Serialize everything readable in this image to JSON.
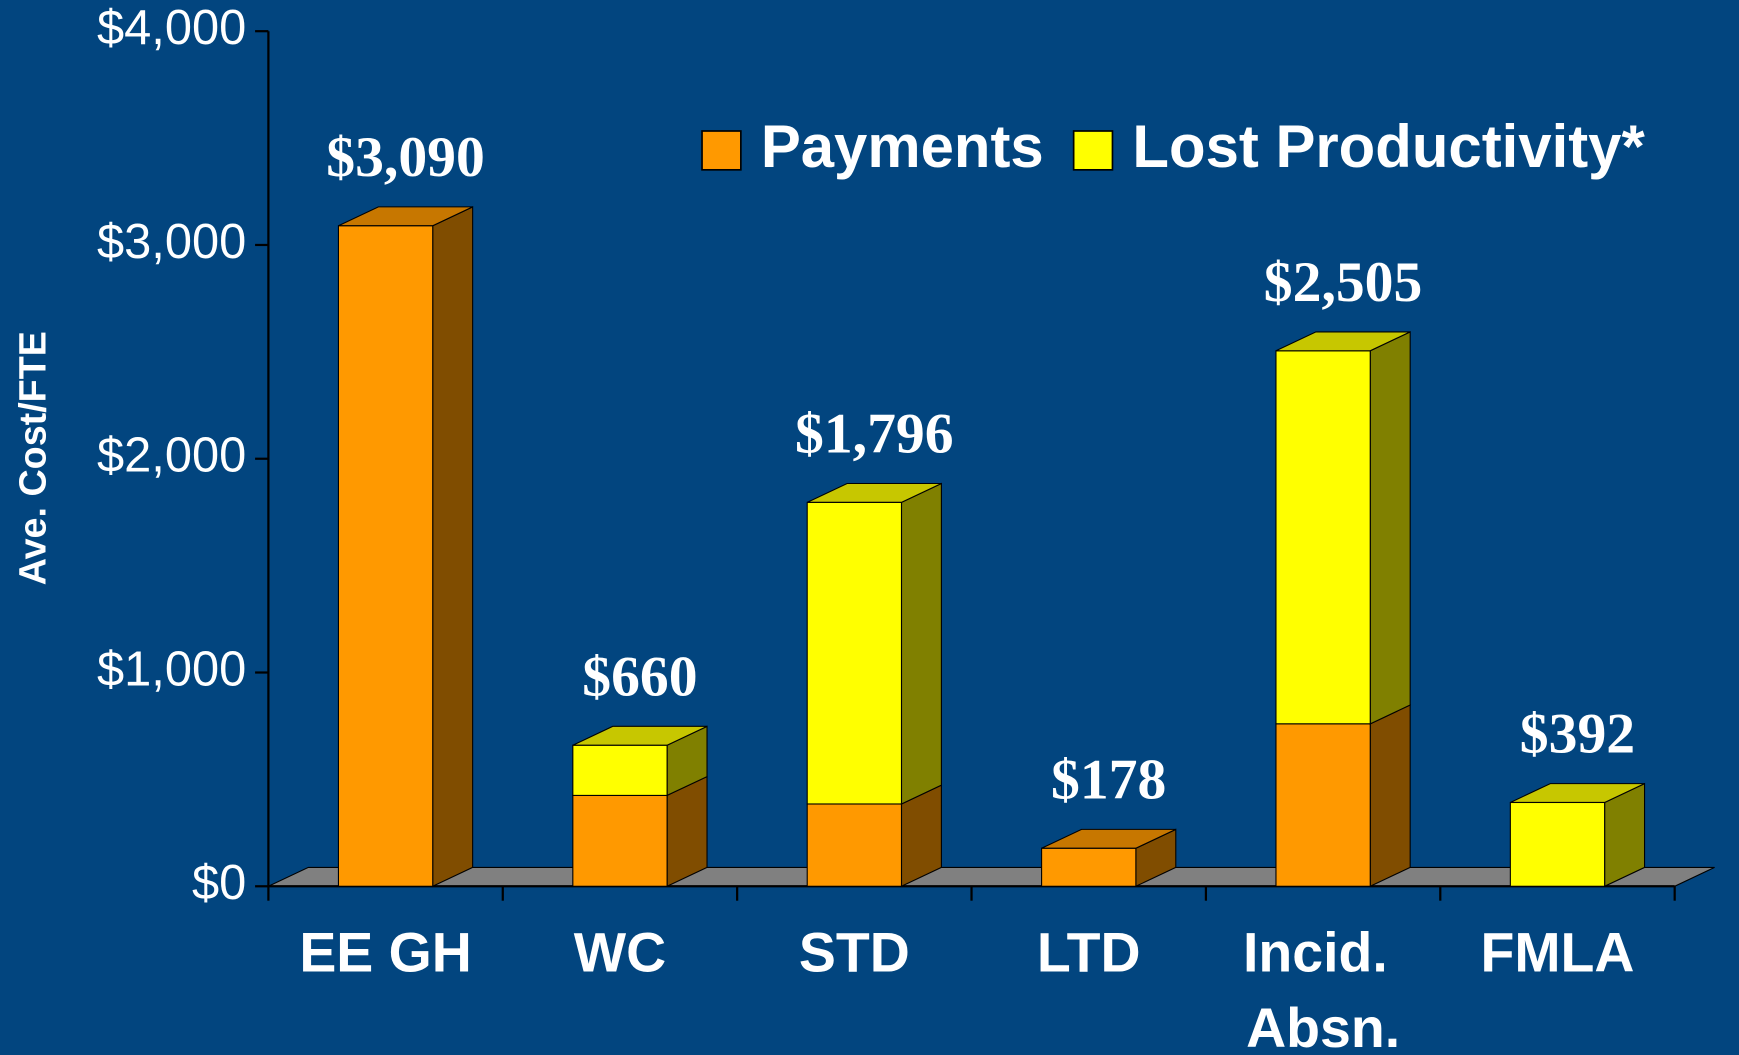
{
  "chart_data": {
    "type": "bar3d_stacked",
    "y_label": "Ave. Cost/FTE",
    "categories": [
      "EE GH",
      "WC",
      "STD",
      "LTD",
      "Incid. Absn.",
      "FMLA"
    ],
    "series": [
      {
        "name": "Payments",
        "color": "#ff9900",
        "values": [
          3090,
          425,
          385,
          178,
          760,
          0
        ]
      },
      {
        "name": "Lost Productivity*",
        "color": "#ffff00",
        "values": [
          0,
          235,
          1411,
          0,
          1745,
          392
        ]
      }
    ],
    "values": [
      3090,
      660,
      1796,
      178,
      2505,
      392
    ],
    "value_labels": [
      "$3,090",
      "$660",
      "$1,796",
      "$178",
      "$2,505",
      "$392"
    ],
    "ylim": [
      0,
      4000
    ],
    "yticks": [
      {
        "value": 0,
        "label": "$0"
      },
      {
        "value": 1000,
        "label": "$1,000"
      },
      {
        "value": 2000,
        "label": "$2,000"
      },
      {
        "value": 3000,
        "label": "$3,000"
      },
      {
        "value": 4000,
        "label": "$4,000"
      }
    ],
    "legend": "upper right"
  }
}
